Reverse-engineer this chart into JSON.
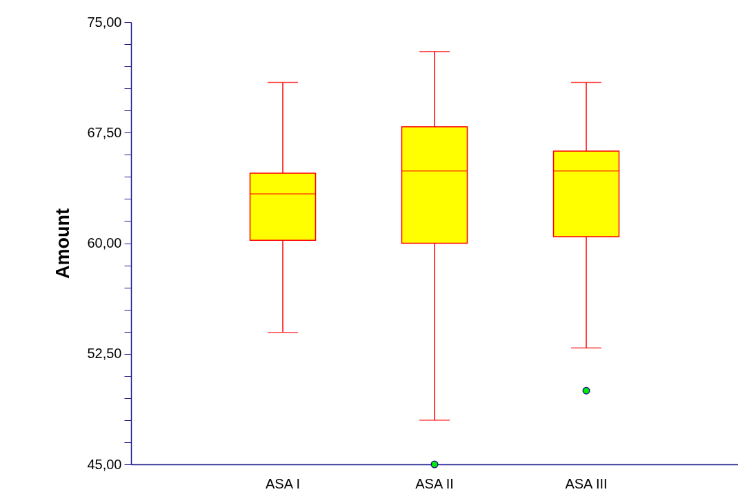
{
  "chart_data": {
    "type": "box",
    "ylabel": "Amount",
    "categories": [
      "ASA I",
      "ASA II",
      "ASA III"
    ],
    "boxes": [
      {
        "low": 53.95,
        "q1": 60.2,
        "median": 63.35,
        "q3": 64.75,
        "high": 70.9
      },
      {
        "low": 48,
        "q1": 60,
        "median": 64.9,
        "q3": 67.9,
        "high": 73,
        "outliers": [
          45
        ]
      },
      {
        "low": 52.9,
        "q1": 60.45,
        "median": 64.9,
        "q3": 66.25,
        "high": 70.9,
        "outliers": [
          50
        ]
      }
    ],
    "color": "#ffff00",
    "ylim": [
      45,
      75
    ],
    "yticks": [
      {
        "value": 45,
        "label": "45,00"
      },
      {
        "value": 46.5,
        "label": null
      },
      {
        "value": 48,
        "label": null
      },
      {
        "value": 49.5,
        "label": null
      },
      {
        "value": 51,
        "label": null
      },
      {
        "value": 52.5,
        "label": "52,50"
      },
      {
        "value": 54,
        "label": null
      },
      {
        "value": 55.5,
        "label": null
      },
      {
        "value": 57,
        "label": null
      },
      {
        "value": 58.5,
        "label": null
      },
      {
        "value": 60,
        "label": "60,00"
      },
      {
        "value": 61.5,
        "label": null
      },
      {
        "value": 63,
        "label": null
      },
      {
        "value": 64.5,
        "label": null
      },
      {
        "value": 66,
        "label": null
      },
      {
        "value": 67.5,
        "label": "67,50"
      },
      {
        "value": 69,
        "label": null
      },
      {
        "value": 70.5,
        "label": null
      },
      {
        "value": 72,
        "label": null
      },
      {
        "value": 73.5,
        "label": null
      },
      {
        "value": 75,
        "label": "75,00"
      }
    ],
    "grid": false
  }
}
